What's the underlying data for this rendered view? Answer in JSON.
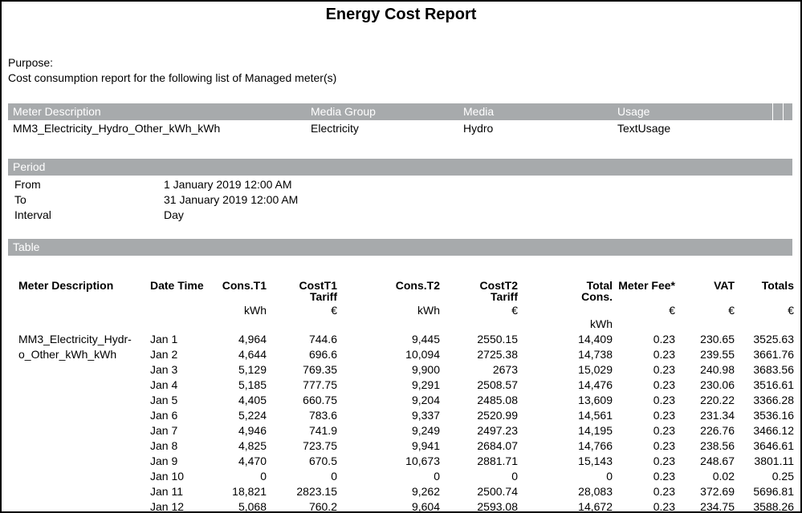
{
  "report": {
    "title": "Energy Cost Report",
    "purpose_label": "Purpose:",
    "purpose_text": "Cost consumption report for the following list of Managed meter(s)"
  },
  "colors": {
    "section_bar_gray": "#a7aaac",
    "bar_text": "#ffffff",
    "body_text": "#000000"
  },
  "meter_table": {
    "headers": [
      "Meter Description",
      "Media Group",
      "Media",
      "Usage"
    ],
    "row": {
      "meter_description": "MM3_Electricity_Hydro_Other_kWh_kWh",
      "media_group": "Electricity",
      "media": "Hydro",
      "usage": "TextUsage"
    }
  },
  "period": {
    "section_label": "Period",
    "rows": [
      {
        "label": "From",
        "value": "1 January 2019 12:00 AM"
      },
      {
        "label": "To",
        "value": "31 January 2019 12:00 AM"
      },
      {
        "label": "Interval",
        "value": "Day"
      }
    ]
  },
  "data_table": {
    "section_label": "Table",
    "meter_lines": [
      "MM3_Electricity_Hydr-",
      "o_Other_kWh_kWh"
    ],
    "columns": [
      {
        "label": "Meter Description",
        "sub": "",
        "unit": "",
        "unit2": ""
      },
      {
        "label": "Date Time",
        "sub": "",
        "unit": "",
        "unit2": ""
      },
      {
        "label": "Cons.T1",
        "sub": "",
        "unit": "kWh",
        "unit2": ""
      },
      {
        "label": "CostT1",
        "sub": "Tariff",
        "unit": "€",
        "unit2": ""
      },
      {
        "label": "Cons.T2",
        "sub": "",
        "unit": "kWh",
        "unit2": ""
      },
      {
        "label": "CostT2",
        "sub": "Tariff",
        "unit": "€",
        "unit2": ""
      },
      {
        "label": "Total",
        "sub": "Cons.",
        "unit": "",
        "unit2": "kWh"
      },
      {
        "label": "Meter Fee*",
        "sub": "",
        "unit": "€",
        "unit2": ""
      },
      {
        "label": "VAT",
        "sub": "",
        "unit": "€",
        "unit2": ""
      },
      {
        "label": "Totals",
        "sub": "",
        "unit": "€",
        "unit2": ""
      }
    ],
    "rows": [
      [
        "Jan 1",
        "4,964",
        "744.6",
        "9,445",
        "2550.15",
        "14,409",
        "0.23",
        "230.65",
        "3525.63"
      ],
      [
        "Jan 2",
        "4,644",
        "696.6",
        "10,094",
        "2725.38",
        "14,738",
        "0.23",
        "239.55",
        "3661.76"
      ],
      [
        "Jan 3",
        "5,129",
        "769.35",
        "9,900",
        "2673",
        "15,029",
        "0.23",
        "240.98",
        "3683.56"
      ],
      [
        "Jan 4",
        "5,185",
        "777.75",
        "9,291",
        "2508.57",
        "14,476",
        "0.23",
        "230.06",
        "3516.61"
      ],
      [
        "Jan 5",
        "4,405",
        "660.75",
        "9,204",
        "2485.08",
        "13,609",
        "0.23",
        "220.22",
        "3366.28"
      ],
      [
        "Jan 6",
        "5,224",
        "783.6",
        "9,337",
        "2520.99",
        "14,561",
        "0.23",
        "231.34",
        "3536.16"
      ],
      [
        "Jan 7",
        "4,946",
        "741.9",
        "9,249",
        "2497.23",
        "14,195",
        "0.23",
        "226.76",
        "3466.12"
      ],
      [
        "Jan 8",
        "4,825",
        "723.75",
        "9,941",
        "2684.07",
        "14,766",
        "0.23",
        "238.56",
        "3646.61"
      ],
      [
        "Jan 9",
        "4,470",
        "670.5",
        "10,673",
        "2881.71",
        "15,143",
        "0.23",
        "248.67",
        "3801.11"
      ],
      [
        "Jan 10",
        "0",
        "0",
        "0",
        "0",
        "0",
        "0.23",
        "0.02",
        "0.25"
      ],
      [
        "Jan 11",
        "18,821",
        "2823.15",
        "9,262",
        "2500.74",
        "28,083",
        "0.23",
        "372.69",
        "5696.81"
      ],
      [
        "Jan 12",
        "5,068",
        "760.2",
        "9,604",
        "2593.08",
        "14,672",
        "0.23",
        "234.75",
        "3588.26"
      ]
    ]
  }
}
